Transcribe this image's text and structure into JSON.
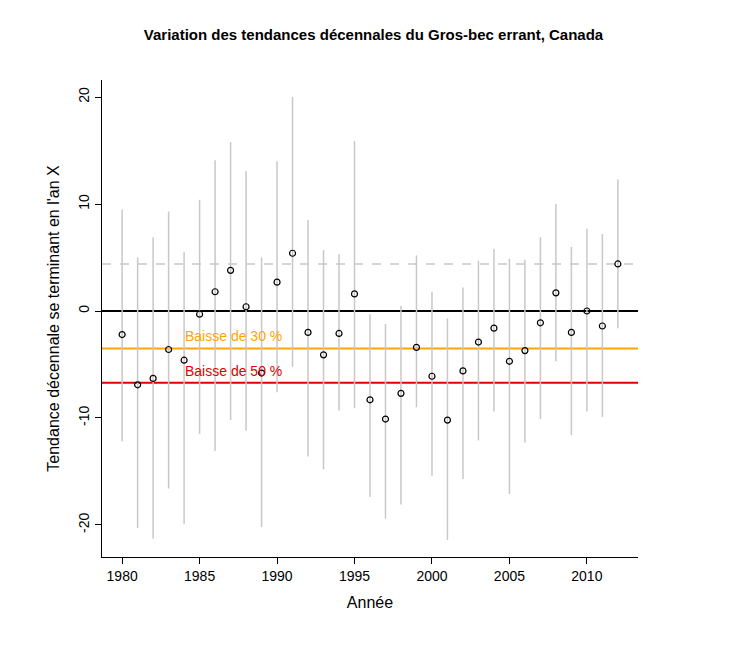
{
  "chart_data": {
    "type": "scatter",
    "title": "Variation des tendances décennales du Gros-bec errant, Canada",
    "x_label": "Année",
    "y_label": "Tendance décennale se terminant en l'an X",
    "x": [
      1980,
      1981,
      1982,
      1983,
      1984,
      1985,
      1986,
      1987,
      1988,
      1989,
      1990,
      1991,
      1992,
      1993,
      1994,
      1995,
      1996,
      1997,
      1998,
      1999,
      2000,
      2001,
      2002,
      2003,
      2004,
      2005,
      2006,
      2007,
      2008,
      2009,
      2010,
      2011,
      2012
    ],
    "values": [
      -2.2,
      -6.9,
      -6.3,
      -3.6,
      -4.6,
      -0.3,
      1.8,
      3.8,
      0.4,
      -5.8,
      2.7,
      5.4,
      -2.0,
      -4.1,
      -2.1,
      1.6,
      -8.3,
      -10.1,
      -7.7,
      -3.4,
      -6.1,
      -10.2,
      -5.6,
      -2.9,
      -1.6,
      -4.7,
      -3.7,
      -1.1,
      1.7,
      -2.0,
      0.0,
      -1.4,
      4.4
    ],
    "lower": [
      -12.2,
      -20.3,
      -21.3,
      -16.6,
      -19.9,
      -11.5,
      -13.1,
      -10.2,
      -11.2,
      -20.2,
      -7.6,
      -5.2,
      -13.6,
      -14.8,
      -9.3,
      -9.1,
      -17.4,
      -19.4,
      -18.1,
      -9.0,
      -15.4,
      -21.4,
      -15.7,
      -12.1,
      -9.4,
      -17.1,
      -12.3,
      -10.1,
      -4.7,
      -11.6,
      -9.4,
      -9.9,
      -1.6
    ],
    "upper": [
      9.5,
      5.0,
      6.9,
      9.3,
      5.5,
      10.4,
      14.1,
      15.8,
      13.1,
      5.0,
      14.0,
      20.0,
      8.5,
      5.7,
      5.3,
      15.9,
      -0.3,
      -1.2,
      0.5,
      5.2,
      1.8,
      -0.7,
      2.2,
      4.7,
      5.8,
      4.9,
      4.8,
      6.9,
      10.0,
      6.0,
      7.7,
      7.2,
      12.3
    ],
    "color": "#000000",
    "error_color": "#c8c8c8",
    "marker": "circle-open",
    "reference_lines": [
      {
        "value": 0,
        "color": "#000000",
        "line_style": "solid"
      },
      {
        "value": 4.4,
        "color": "#c8c8c8",
        "line_style": "dash"
      },
      {
        "value": -3.5,
        "color": "#ffa500",
        "line_style": "solid",
        "label": "Baisse de 30 %"
      },
      {
        "value": -6.7,
        "color": "#e00000",
        "line_style": "solid",
        "label": "Baisse de 50 %"
      }
    ],
    "xlim": [
      1978.7,
      2013.3
    ],
    "ylim": [
      -23,
      21.6
    ],
    "xticks": [
      1980,
      1985,
      1990,
      1995,
      2000,
      2005,
      2010
    ],
    "yticks": [
      -20,
      -10,
      0,
      10,
      20
    ],
    "grid": false
  }
}
